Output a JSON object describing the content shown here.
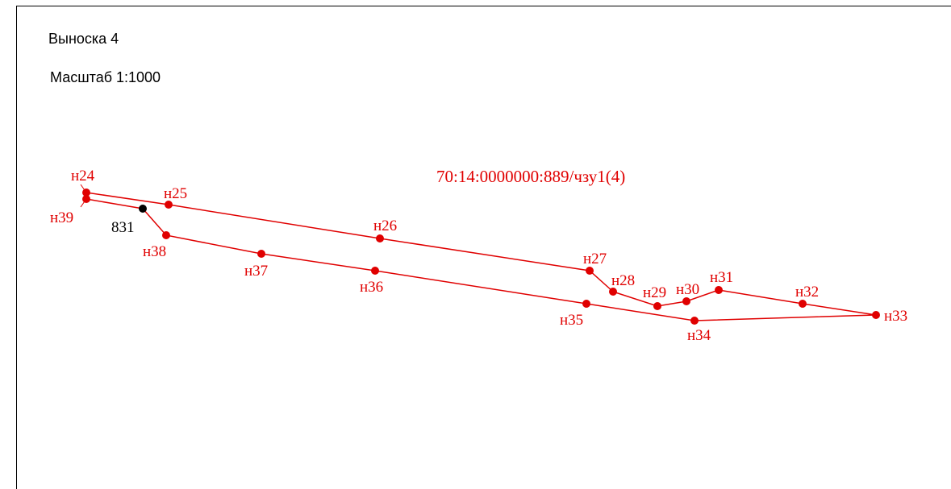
{
  "header": {
    "callout": "Выноска 4",
    "scale": "Масштаб 1:1000"
  },
  "parcel": {
    "cadastral_number": "70:14:0000000:889/чзу1(4)"
  },
  "points": {
    "n24": "н24",
    "n25": "н25",
    "n26": "н26",
    "n27": "н27",
    "n28": "н28",
    "n29": "н29",
    "n30": "н30",
    "n31": "н31",
    "n32": "н32",
    "n33": "н33",
    "n34": "н34",
    "n35": "н35",
    "n36": "н36",
    "n37": "н37",
    "n38": "н38",
    "n39": "н39",
    "p831": "831"
  },
  "colors": {
    "boundary": "#e00000",
    "existing_point": "#000000",
    "frame": "#000000"
  }
}
